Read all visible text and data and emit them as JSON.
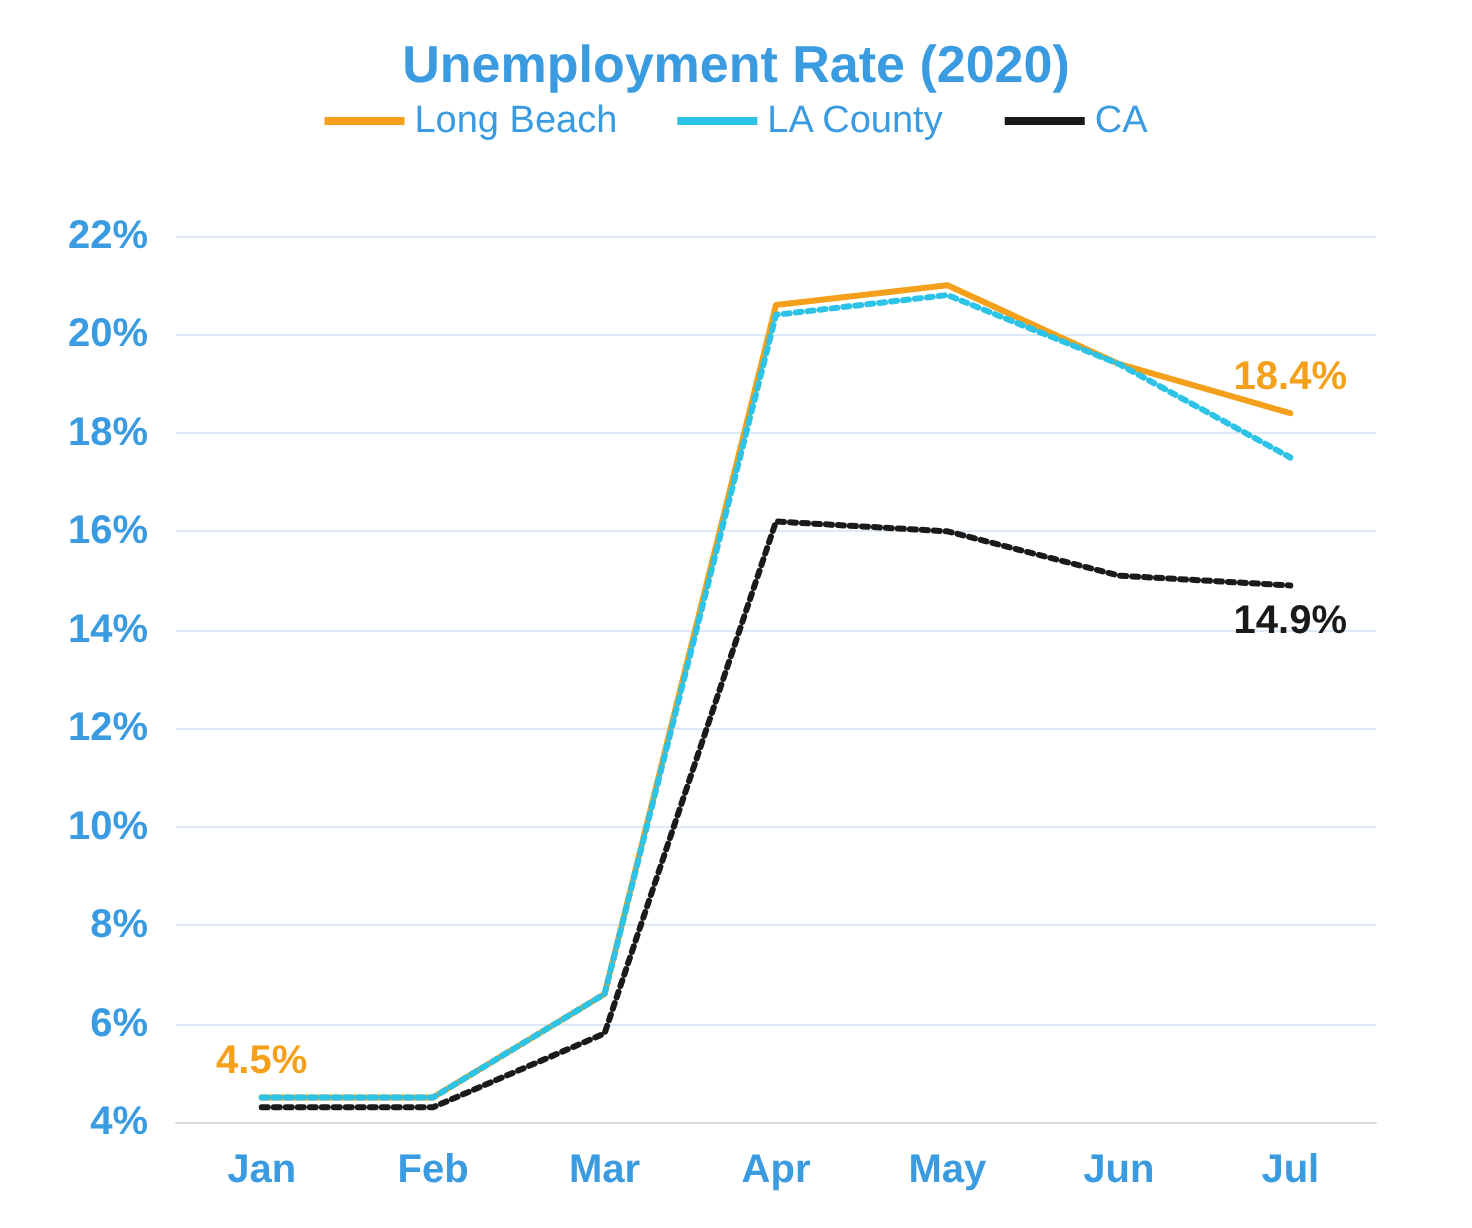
{
  "chart_data": {
    "type": "line",
    "title": "Unemployment Rate (2020)",
    "categories": [
      "Jan",
      "Feb",
      "Mar",
      "Apr",
      "May",
      "Jun",
      "Jul"
    ],
    "series": [
      {
        "name": "Long Beach",
        "color": "#f5a01a",
        "line_style": "solid",
        "values": [
          4.5,
          4.5,
          6.6,
          20.6,
          21.0,
          19.4,
          18.4
        ],
        "value_labels": [
          "4.5%",
          null,
          null,
          null,
          null,
          null,
          "18.4%"
        ]
      },
      {
        "name": "LA County",
        "color": "#2cc3e6",
        "line_style": "dotted",
        "values": [
          4.5,
          4.5,
          6.6,
          20.4,
          20.8,
          19.4,
          17.5
        ],
        "value_labels": [
          null,
          null,
          null,
          null,
          null,
          null,
          null
        ]
      },
      {
        "name": "CA",
        "color": "#1a1a1a",
        "line_style": "dotted",
        "values": [
          4.3,
          4.3,
          5.8,
          16.2,
          16.0,
          15.1,
          14.9
        ],
        "value_labels": [
          null,
          null,
          null,
          null,
          null,
          null,
          "14.9%"
        ]
      }
    ],
    "ylim": [
      4,
      22
    ],
    "yticks": [
      {
        "value": 4,
        "label": "4%"
      },
      {
        "value": 6,
        "label": "6%"
      },
      {
        "value": 8,
        "label": "8%"
      },
      {
        "value": 10,
        "label": "10%"
      },
      {
        "value": 12,
        "label": "12%"
      },
      {
        "value": 14,
        "label": "14%"
      },
      {
        "value": 16,
        "label": "16%"
      },
      {
        "value": 18,
        "label": "18%"
      },
      {
        "value": 20,
        "label": "20%"
      },
      {
        "value": 22,
        "label": "22%"
      }
    ],
    "grid": "y",
    "legend": "top",
    "marker": "none"
  }
}
